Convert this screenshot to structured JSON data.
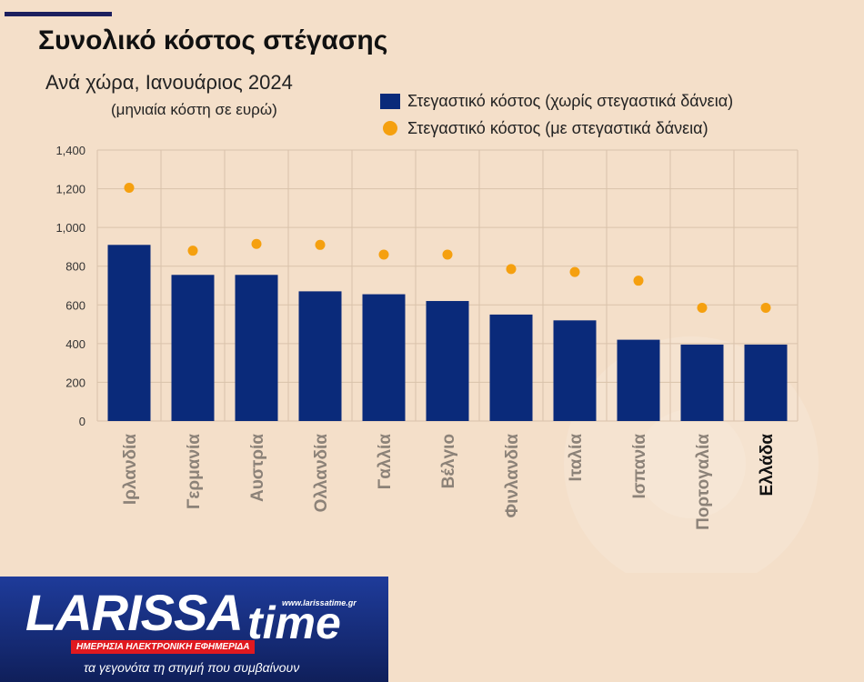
{
  "header": {
    "title": "Συνολικό κόστος στέγασης",
    "subtitle": "Ανά χώρα, Ιανουάριος 2024",
    "subtitle2": "(μηνιαία κόστη σε ευρώ)"
  },
  "legend": {
    "bar_label": "Στεγαστικό κόστος (χωρίς στεγαστικά δάνεια)",
    "dot_label": "Στεγαστικό κόστος (με στεγαστικά δάνεια)"
  },
  "colors": {
    "bar": "#0a2a7a",
    "dot": "#f5a00f",
    "grid": "#d9c2aa",
    "axis_text": "#333333",
    "category_text": "#8c8278",
    "highlight_text": "#111111"
  },
  "chart_data": {
    "type": "bar",
    "categories": [
      "Ιρλανδία",
      "Γερμανία",
      "Αυστρία",
      "Ολλανδία",
      "Γαλλία",
      "Βέλγιο",
      "Φινλανδία",
      "Ιταλία",
      "Ισπανία",
      "Πορτογαλία",
      "Ελλάδα"
    ],
    "highlight_category": "Ελλάδα",
    "series": [
      {
        "name": "Στεγαστικό κόστος (χωρίς στεγαστικά δάνεια)",
        "type": "bar",
        "values": [
          910,
          755,
          755,
          670,
          655,
          620,
          550,
          520,
          420,
          395,
          395
        ]
      },
      {
        "name": "Στεγαστικό κόστος (με στεγαστικά δάνεια)",
        "type": "scatter",
        "values": [
          1205,
          880,
          915,
          910,
          860,
          860,
          785,
          770,
          725,
          585,
          585
        ]
      }
    ],
    "y_ticks": [
      "0",
      "200",
      "400",
      "600",
      "800",
      "1,000",
      "1,200",
      "1,400"
    ],
    "ylim": [
      0,
      1400
    ],
    "grid": true,
    "legend_position": "top-right"
  },
  "footer": {
    "logo_main": "LARISSA",
    "logo_time": "time",
    "logo_url": "www.larissatime.gr",
    "logo_tagline": "ΗΜΕΡΗΣΙΑ ΗΛΕΚΤΡΟΝΙΚΗ ΕΦΗΜΕΡΙΔΑ",
    "slogan": "τα γεγονότα τη στιγμή που συμβαίνουν"
  }
}
